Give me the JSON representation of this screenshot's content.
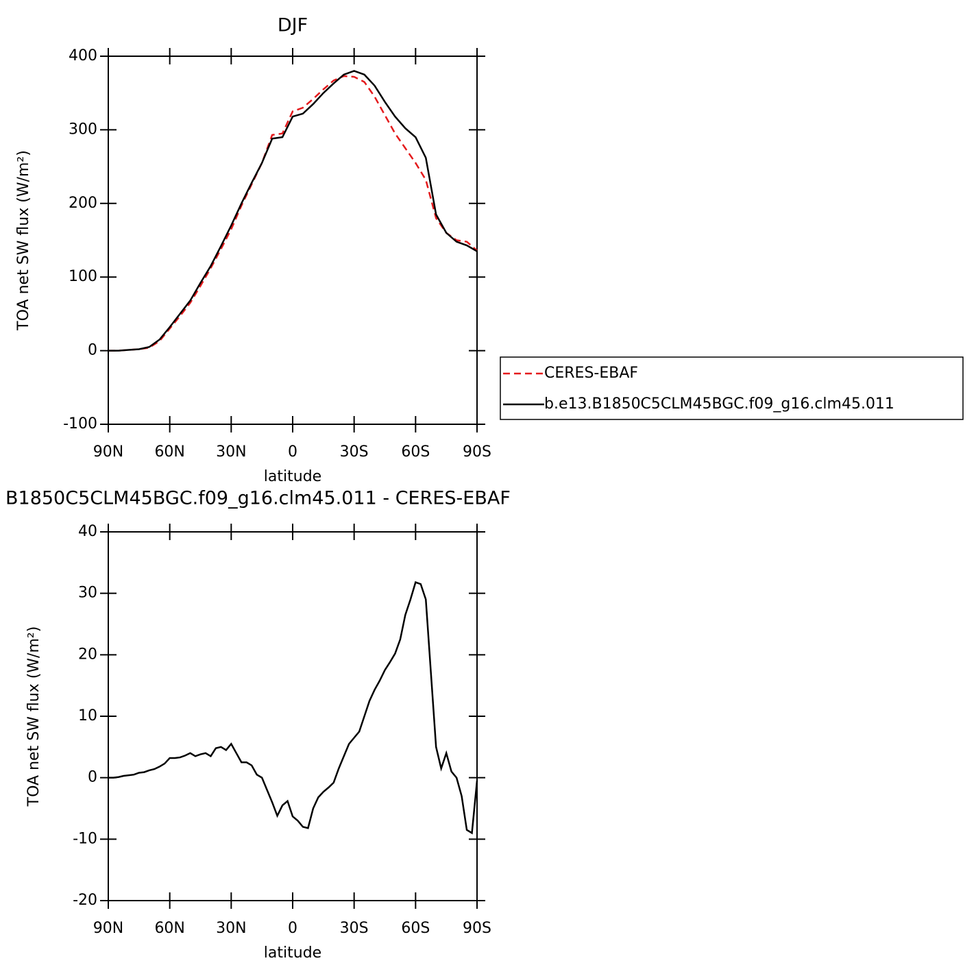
{
  "chart_data": [
    {
      "type": "line",
      "title": "DJF",
      "xlabel": "latitude",
      "ylabel": "TOA net SW flux (W/m²)",
      "x": [
        90,
        85,
        80,
        75,
        70,
        65,
        60,
        55,
        50,
        45,
        40,
        35,
        30,
        25,
        20,
        15,
        10,
        5,
        0,
        -5,
        -10,
        -15,
        -20,
        -25,
        -30,
        -35,
        -40,
        -45,
        -50,
        -55,
        -60,
        -65,
        -70,
        -75,
        -80,
        -85,
        -90
      ],
      "series": [
        {
          "name": "CERES-EBAF",
          "color": "#e41a1c",
          "dashed": true,
          "values": [
            0,
            0,
            1,
            2,
            4,
            13,
            30,
            47,
            65,
            88,
            112,
            138,
            165,
            197,
            226,
            255,
            293,
            295,
            325,
            330,
            342,
            355,
            367,
            373,
            372,
            365,
            345,
            320,
            295,
            275,
            255,
            232,
            180,
            160,
            150,
            148,
            136
          ]
        },
        {
          "name": "b.e13.B1850C5CLM45BGC.f09_g16.clm45.011",
          "color": "#000000",
          "dashed": false,
          "values": [
            0,
            0,
            1,
            2,
            5,
            15,
            32,
            50,
            68,
            92,
            115,
            142,
            170,
            200,
            228,
            255,
            288,
            290,
            318,
            322,
            335,
            350,
            363,
            375,
            380,
            375,
            360,
            338,
            318,
            302,
            290,
            262,
            185,
            160,
            148,
            143,
            135
          ]
        }
      ],
      "xlim": [
        90,
        -90
      ],
      "xticks": [
        {
          "value": 90,
          "label": "90N"
        },
        {
          "value": 60,
          "label": "60N"
        },
        {
          "value": 30,
          "label": "30N"
        },
        0,
        {
          "value": -30,
          "label": "30S"
        },
        {
          "value": -60,
          "label": "60S"
        },
        {
          "value": -90,
          "label": "90S"
        }
      ],
      "ylim": [
        -100,
        400
      ],
      "yticks": [
        -100,
        0,
        100,
        200,
        300,
        400
      ],
      "legend": "right"
    },
    {
      "type": "line",
      "title": "B1850C5CLM45BGC.f09_g16.clm45.011 - CERES-EBAF",
      "xlabel": "latitude",
      "ylabel": "TOA net SW flux (W/m²)",
      "x": [
        90,
        87.5,
        85,
        82.5,
        80,
        77.5,
        75,
        72.5,
        70,
        67.5,
        65,
        62.5,
        60,
        57.5,
        55,
        52.5,
        50,
        47.5,
        45,
        42.5,
        40,
        37.5,
        35,
        32.5,
        30,
        27.5,
        25,
        22.5,
        20,
        17.5,
        15,
        12.5,
        10,
        7.5,
        5,
        2.5,
        0,
        -2.5,
        -5,
        -7.5,
        -10,
        -12.5,
        -15,
        -17.5,
        -20,
        -22.5,
        -25,
        -27.5,
        -30,
        -32.5,
        -35,
        -37.5,
        -40,
        -42.5,
        -45,
        -47.5,
        -50,
        -52.5,
        -55,
        -57.5,
        -60,
        -62.5,
        -65,
        -67.5,
        -70,
        -72.5,
        -75,
        -77.5,
        -80,
        -82.5,
        -85,
        -87.5,
        -90
      ],
      "series": [
        {
          "name": null,
          "color": "#000000",
          "dashed": false,
          "values": [
            0,
            0,
            0.1,
            0.3,
            0.4,
            0.5,
            0.8,
            0.9,
            1.2,
            1.4,
            1.8,
            2.3,
            3.2,
            3.2,
            3.3,
            3.6,
            4.0,
            3.5,
            3.8,
            4.0,
            3.5,
            4.8,
            5.0,
            4.5,
            5.5,
            4.0,
            2.5,
            2.5,
            2.0,
            0.5,
            0,
            -2,
            -4,
            -6.2,
            -4.5,
            -3.8,
            -6.3,
            -7.0,
            -8.0,
            -8.2,
            -5,
            -3.2,
            -2.3,
            -1.6,
            -0.8,
            1.5,
            3.5,
            5.5,
            6.5,
            7.5,
            10,
            12.5,
            14.3,
            15.8,
            17.5,
            18.8,
            20.2,
            22.5,
            26.5,
            29,
            31.8,
            31.5,
            29,
            17,
            5,
            1.5,
            4.0,
            1,
            0,
            -3,
            -8.5,
            -9,
            -0.5
          ]
        }
      ],
      "xlim": [
        90,
        -90
      ],
      "xticks": [
        {
          "value": 90,
          "label": "90N"
        },
        {
          "value": 60,
          "label": "60N"
        },
        {
          "value": 30,
          "label": "30N"
        },
        0,
        {
          "value": -30,
          "label": "30S"
        },
        {
          "value": -60,
          "label": "60S"
        },
        {
          "value": -90,
          "label": "90S"
        }
      ],
      "ylim": [
        -20,
        40
      ],
      "yticks": [
        -20,
        -10,
        0,
        10,
        20,
        30,
        40
      ]
    }
  ]
}
